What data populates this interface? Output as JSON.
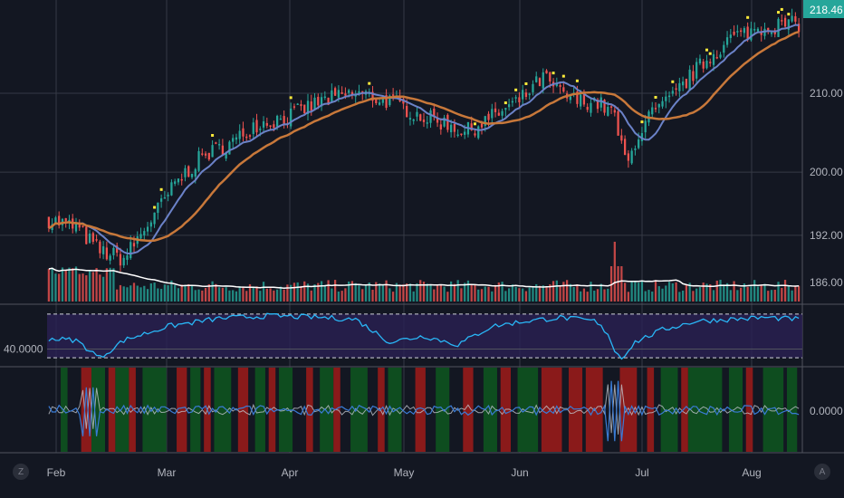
{
  "toolbar": {
    "left_button": "Z",
    "right_button": "A"
  },
  "colors": {
    "background": "#131722",
    "grid": "#363a45",
    "up": "#26a69a",
    "down": "#ef5350",
    "ma_fast": "#6b82c8",
    "ma_slow": "#c8783a",
    "volume_ma": "#ffffff",
    "price_badge": "#26a69a",
    "rsi_line": "#29b6f6",
    "rsi_band": "#2a2054",
    "marker": "#ffeb3b",
    "osc_green": "#0e4d1f",
    "osc_red": "#8a1a1a",
    "osc_line_a": "#3a7bd5",
    "osc_line_b": "#c0c4cc"
  },
  "chart_data": [
    {
      "type": "candlestick",
      "panel": "price",
      "x_ticks": [
        "Feb",
        "Mar",
        "Apr",
        "May",
        "Jun",
        "Jul",
        "Aug"
      ],
      "y_ticks": [
        "210.00",
        "200.00",
        "192.00",
        "186.00"
      ],
      "y_range": [
        183.6,
        221.6
      ],
      "last_price": "218.46",
      "series": [
        {
          "type": "line",
          "indicator": "fast moving average"
        },
        {
          "type": "line",
          "indicator": "slow moving average"
        }
      ],
      "anchors": [
        [
          0,
          194
        ],
        [
          8,
          193
        ],
        [
          15,
          190
        ],
        [
          22,
          189
        ],
        [
          30,
          194
        ],
        [
          38,
          199
        ],
        [
          45,
          202
        ],
        [
          55,
          204
        ],
        [
          60,
          206
        ],
        [
          70,
          207
        ],
        [
          80,
          209
        ],
        [
          90,
          210
        ],
        [
          100,
          209
        ],
        [
          110,
          207
        ],
        [
          118,
          206
        ],
        [
          122,
          205
        ],
        [
          130,
          207
        ],
        [
          138,
          209
        ],
        [
          145,
          212
        ],
        [
          150,
          210
        ],
        [
          155,
          209
        ],
        [
          160,
          209
        ],
        [
          164,
          208
        ],
        [
          166,
          207
        ],
        [
          168,
          203
        ],
        [
          170,
          201
        ],
        [
          172,
          204
        ],
        [
          176,
          207
        ],
        [
          182,
          209
        ],
        [
          190,
          213
        ],
        [
          200,
          217
        ],
        [
          210,
          218.5
        ],
        [
          220,
          218.8
        ]
      ]
    },
    {
      "type": "bar",
      "panel": "volume",
      "series": [
        {
          "type": "line",
          "indicator": "volume moving average"
        }
      ],
      "spike_index": 166
    },
    {
      "type": "line",
      "panel": "rsi",
      "y_ticks": [
        "40.0000"
      ],
      "anchors": [
        [
          0,
          52
        ],
        [
          8,
          50
        ],
        [
          15,
          30
        ],
        [
          22,
          50
        ],
        [
          35,
          66
        ],
        [
          50,
          75
        ],
        [
          65,
          78
        ],
        [
          80,
          76
        ],
        [
          90,
          74
        ],
        [
          100,
          48
        ],
        [
          110,
          55
        ],
        [
          120,
          45
        ],
        [
          130,
          66
        ],
        [
          140,
          72
        ],
        [
          150,
          76
        ],
        [
          160,
          72
        ],
        [
          164,
          58
        ],
        [
          166,
          38
        ],
        [
          168,
          30
        ],
        [
          172,
          48
        ],
        [
          180,
          62
        ],
        [
          190,
          72
        ],
        [
          210,
          76
        ],
        [
          220,
          74
        ]
      ]
    },
    {
      "type": "line",
      "panel": "oscillator",
      "y_ticks": [
        "0.0000"
      ],
      "red_zones": [
        [
          10,
          12
        ],
        [
          18,
          19
        ],
        [
          24,
          25
        ],
        [
          38,
          40
        ],
        [
          46,
          47
        ],
        [
          56,
          58
        ],
        [
          65,
          66
        ],
        [
          76,
          77
        ],
        [
          84,
          85
        ],
        [
          97,
          98
        ],
        [
          108,
          110
        ],
        [
          122,
          124
        ],
        [
          133,
          135
        ],
        [
          145,
          150
        ],
        [
          153,
          156
        ],
        [
          158,
          162
        ],
        [
          168,
          172
        ],
        [
          176,
          177
        ],
        [
          186,
          187
        ],
        [
          205,
          206
        ]
      ],
      "green_zones": [
        [
          4,
          5
        ],
        [
          13,
          16
        ],
        [
          20,
          23
        ],
        [
          28,
          34
        ],
        [
          42,
          44
        ],
        [
          49,
          53
        ],
        [
          61,
          63
        ],
        [
          68,
          71
        ],
        [
          80,
          83
        ],
        [
          89,
          93
        ],
        [
          100,
          103
        ],
        [
          114,
          117
        ],
        [
          128,
          131
        ],
        [
          138,
          143
        ],
        [
          180,
          184
        ],
        [
          188,
          197
        ],
        [
          200,
          203
        ],
        [
          210,
          215
        ],
        [
          217,
          219
        ]
      ]
    }
  ]
}
